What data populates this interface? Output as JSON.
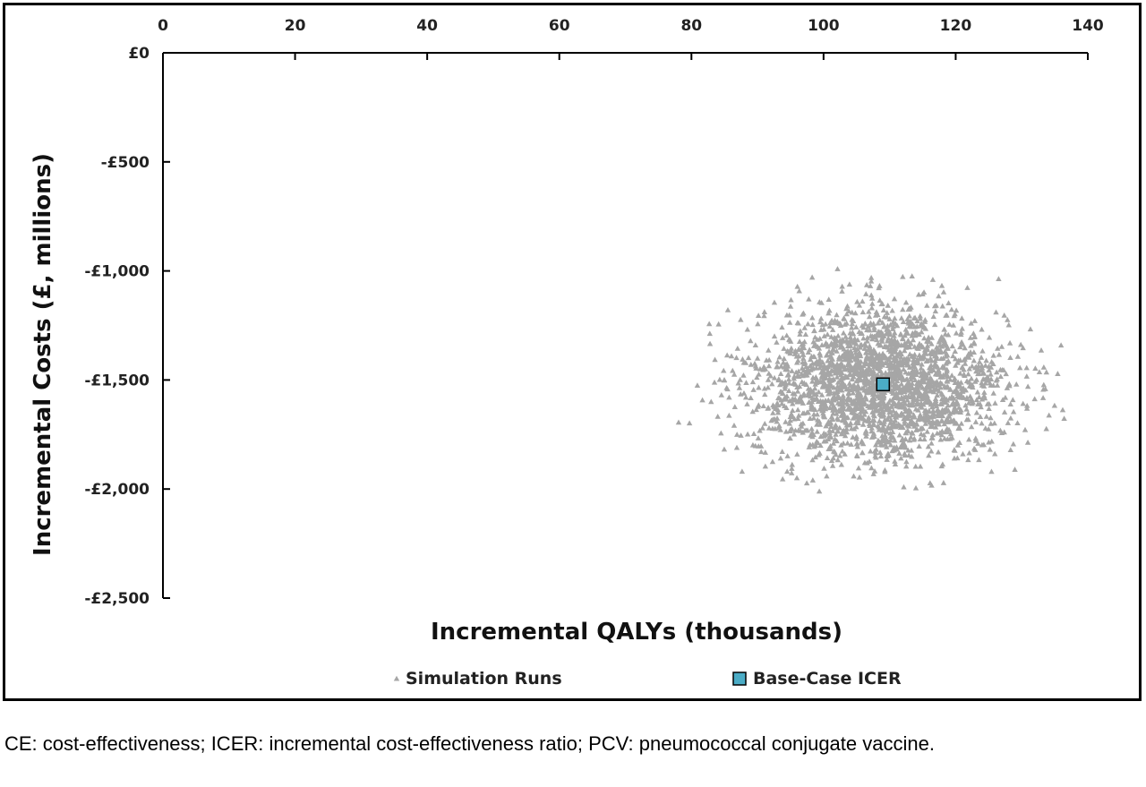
{
  "caption": "CE: cost-effectiveness; ICER: incremental cost-effectiveness ratio; PCV: pneumococcal conjugate vaccine.",
  "chart_data": {
    "type": "scatter",
    "xlabel": "Incremental QALYs (thousands)",
    "ylabel": "Incremental Costs (£, millions)",
    "xlim": [
      0,
      140
    ],
    "ylim": [
      -2500,
      0
    ],
    "x_ticks": [
      0,
      20,
      40,
      60,
      80,
      100,
      120,
      140
    ],
    "x_tick_labels": [
      "0",
      "20",
      "40",
      "60",
      "80",
      "100",
      "120",
      "140"
    ],
    "y_ticks": [
      0,
      -500,
      -1000,
      -1500,
      -2000,
      -2500
    ],
    "y_tick_labels": [
      "£0",
      "-£500",
      "-£1,000",
      "-£1,500",
      "-£2,000",
      "-£2,500"
    ],
    "x_axis_position": "top",
    "grid": false,
    "legend_position": "bottom",
    "series": [
      {
        "name": "Simulation Runs",
        "marker": "triangle",
        "color": "#a6a6a6",
        "distribution": {
          "count": 2500,
          "x_mean": 108.5,
          "x_sd": 9.5,
          "y_mean": -1520,
          "y_sd": 175,
          "x_range": [
            78,
            137
          ],
          "y_range": [
            -2020,
            -980
          ]
        }
      },
      {
        "name": "Base-Case ICER",
        "marker": "square",
        "color": "#4bacc6",
        "points": [
          {
            "x": 109,
            "y": -1520
          }
        ]
      }
    ]
  }
}
